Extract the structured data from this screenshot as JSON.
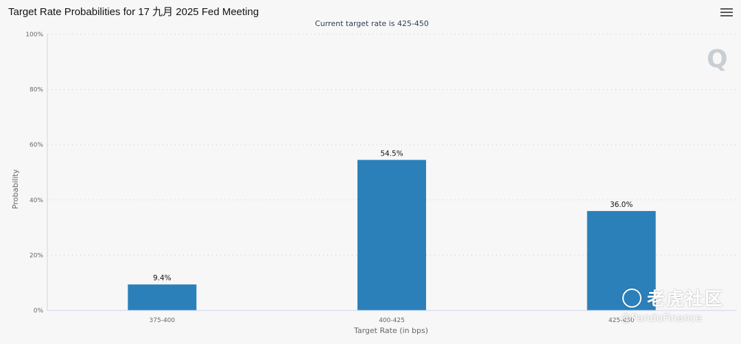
{
  "header": {
    "title": "Target Rate Probabilities for 17 九月 2025 Fed Meeting",
    "menu_icon": "hamburger-menu-icon"
  },
  "chart_data": {
    "type": "bar",
    "title": "",
    "subtitle": "Current target rate is 425-450",
    "xlabel": "Target Rate (in bps)",
    "ylabel": "Probability",
    "categories": [
      "375-400",
      "400-425",
      "425-450"
    ],
    "values": [
      9.4,
      54.5,
      36.0
    ],
    "data_labels": [
      "9.4%",
      "54.5%",
      "36.0%"
    ],
    "ylim": [
      0,
      100
    ],
    "yticks": [
      0,
      20,
      40,
      60,
      80,
      100
    ],
    "ytick_labels": [
      "0%",
      "20%",
      "40%",
      "60%",
      "80%",
      "100%"
    ],
    "grid": true,
    "bar_color": "#2b80ba"
  },
  "watermark": {
    "name": "老虎社区",
    "handle": "@PandoFinance"
  },
  "logo": {
    "letter": "Q"
  }
}
